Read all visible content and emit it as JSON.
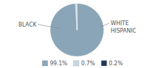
{
  "chart_data": {
    "type": "pie",
    "categories": [
      "99.1%",
      "0.7%",
      "0.2%"
    ],
    "values": [
      99.1,
      0.7,
      0.2
    ],
    "colors": [
      "#8aa5b8",
      "#c5d8e5",
      "#1e3a5a"
    ],
    "annotations": [
      "BLACK",
      "WHITE",
      "HISPANIC"
    ],
    "legend": "bottom"
  }
}
